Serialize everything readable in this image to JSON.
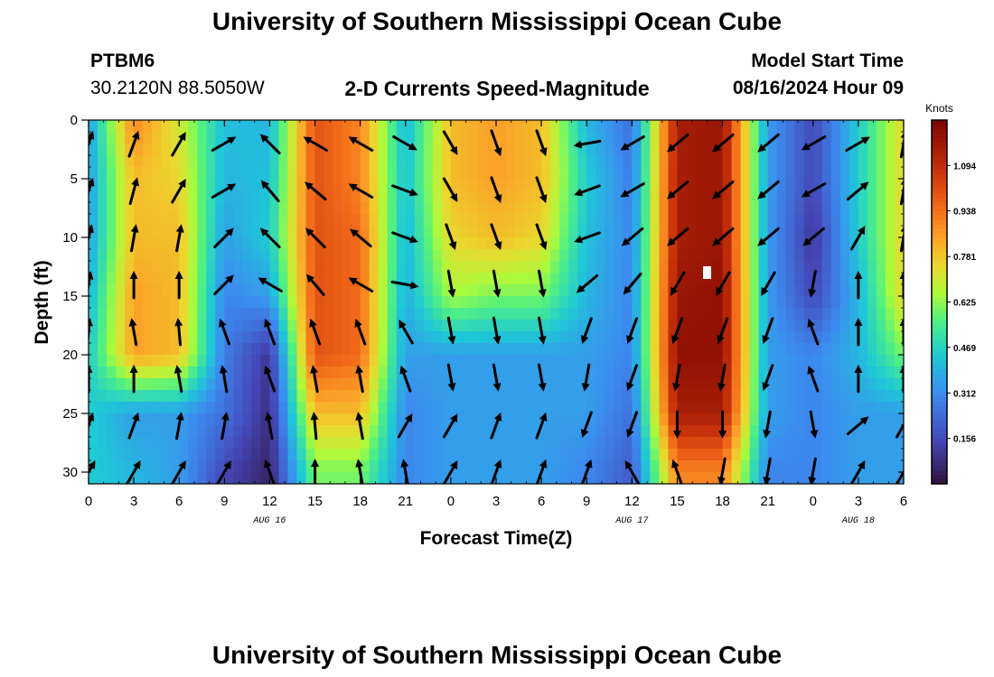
{
  "header": {
    "title": "University of Southern Mississippi Ocean Cube",
    "station_id": "PTBM6",
    "station_coords": "30.2120N  88.5050W",
    "plot_title": "2-D Currents Speed-Magnitude",
    "model_start_label": "Model Start Time",
    "model_start_value": "08/16/2024 Hour 09"
  },
  "footer": {
    "title": "University of Southern Mississippi Ocean Cube"
  },
  "chart_data": {
    "type": "heatmap",
    "title": "2-D Currents Speed-Magnitude",
    "xlabel": "Forecast Time(Z)",
    "ylabel": "Depth (ft)",
    "x_range_hours": [
      0,
      54
    ],
    "y_range_ft": [
      0,
      31
    ],
    "x_tick_hours": [
      0,
      3,
      6,
      9,
      12,
      15,
      18,
      21,
      24,
      27,
      30,
      33,
      36,
      39,
      42,
      45,
      48,
      51,
      54
    ],
    "x_tick_labels": [
      "0",
      "3",
      "6",
      "9",
      "12",
      "15",
      "18",
      "21",
      "0",
      "3",
      "6",
      "9",
      "12",
      "15",
      "18",
      "21",
      "0",
      "3",
      "6"
    ],
    "y_ticks": [
      0,
      5,
      10,
      15,
      20,
      25,
      30
    ],
    "y_tick_labels": [
      "0",
      "5",
      "10",
      "15",
      "20",
      "25",
      "30"
    ],
    "date_labels": [
      {
        "hour": 12,
        "text": "AUG 16"
      },
      {
        "hour": 36,
        "text": "AUG 17"
      },
      {
        "hour": 51,
        "text": "AUG 18"
      }
    ],
    "colorbar": {
      "unit": "Knots",
      "min": 0,
      "max": 1.25,
      "tick_values": [
        0.156,
        0.312,
        0.469,
        0.625,
        0.781,
        0.938,
        1.094
      ],
      "tick_labels": [
        "0.156",
        "0.312",
        "0.469",
        "0.625",
        "0.781",
        "0.938",
        "1.094"
      ]
    },
    "speed_grid": {
      "hours": [
        0,
        3,
        6,
        9,
        12,
        15,
        18,
        21,
        24,
        27,
        30,
        33,
        36,
        39,
        42,
        45,
        48,
        51,
        54
      ],
      "depths_ft": [
        0,
        5,
        10,
        15,
        20,
        25,
        30
      ],
      "knots": [
        [
          0.35,
          0.9,
          0.7,
          0.42,
          0.4,
          1.0,
          0.9,
          0.4,
          0.8,
          0.85,
          0.8,
          0.4,
          0.25,
          1.15,
          1.18,
          0.35,
          0.15,
          0.45,
          0.75
        ],
        [
          0.35,
          0.8,
          0.75,
          0.4,
          0.42,
          1.0,
          0.9,
          0.42,
          0.8,
          0.85,
          0.8,
          0.45,
          0.28,
          1.15,
          1.18,
          0.35,
          0.15,
          0.45,
          0.75
        ],
        [
          0.35,
          0.8,
          0.8,
          0.35,
          0.45,
          1.0,
          0.95,
          0.4,
          0.75,
          0.8,
          0.75,
          0.42,
          0.3,
          1.15,
          1.18,
          0.35,
          0.1,
          0.45,
          0.75
        ],
        [
          0.4,
          0.85,
          0.8,
          0.3,
          0.35,
          1.0,
          0.95,
          0.38,
          0.65,
          0.6,
          0.6,
          0.4,
          0.3,
          1.18,
          1.2,
          0.35,
          0.15,
          0.4,
          0.75
        ],
        [
          0.45,
          0.85,
          0.8,
          0.28,
          0.1,
          1.0,
          0.95,
          0.35,
          0.35,
          0.35,
          0.35,
          0.35,
          0.3,
          1.2,
          1.2,
          0.35,
          0.3,
          0.4,
          0.6
        ],
        [
          0.45,
          0.35,
          0.35,
          0.25,
          0.08,
          0.8,
          0.8,
          0.3,
          0.35,
          0.35,
          0.35,
          0.35,
          0.25,
          1.15,
          1.15,
          0.35,
          0.3,
          0.35,
          0.35
        ],
        [
          0.45,
          0.4,
          0.35,
          0.15,
          0.05,
          0.6,
          0.6,
          0.3,
          0.35,
          0.35,
          0.35,
          0.3,
          0.2,
          0.9,
          0.9,
          0.3,
          0.3,
          0.35,
          0.35
        ]
      ]
    },
    "vectors": {
      "hours": [
        0,
        3,
        6,
        9,
        12,
        15,
        18,
        21,
        24,
        27,
        30,
        33,
        36,
        39,
        42,
        45,
        48,
        51,
        54
      ],
      "depths_ft": [
        2,
        6,
        10,
        14,
        18,
        22,
        26,
        30
      ],
      "angles_deg": [
        [
          70,
          70,
          60,
          30,
          135,
          150,
          150,
          330,
          300,
          290,
          290,
          190,
          210,
          220,
          220,
          220,
          210,
          30,
          80
        ],
        [
          70,
          75,
          60,
          30,
          130,
          140,
          150,
          340,
          300,
          290,
          290,
          200,
          210,
          220,
          220,
          220,
          210,
          40,
          80
        ],
        [
          75,
          80,
          80,
          45,
          135,
          135,
          140,
          340,
          290,
          290,
          290,
          200,
          220,
          220,
          220,
          220,
          220,
          60,
          80
        ],
        [
          80,
          90,
          90,
          45,
          150,
          130,
          150,
          350,
          280,
          280,
          280,
          220,
          230,
          240,
          240,
          240,
          260,
          90,
          90
        ],
        [
          85,
          100,
          95,
          110,
          110,
          110,
          110,
          120,
          280,
          280,
          280,
          250,
          250,
          250,
          250,
          250,
          110,
          90,
          90
        ],
        [
          90,
          90,
          100,
          100,
          110,
          100,
          100,
          110,
          280,
          280,
          280,
          260,
          250,
          260,
          260,
          250,
          110,
          90,
          90
        ],
        [
          70,
          70,
          80,
          80,
          100,
          95,
          100,
          60,
          60,
          70,
          70,
          250,
          250,
          270,
          270,
          260,
          280,
          40,
          60
        ],
        [
          60,
          60,
          60,
          60,
          110,
          90,
          100,
          100,
          60,
          70,
          70,
          70,
          120,
          110,
          260,
          260,
          260,
          60,
          60
        ]
      ]
    }
  }
}
